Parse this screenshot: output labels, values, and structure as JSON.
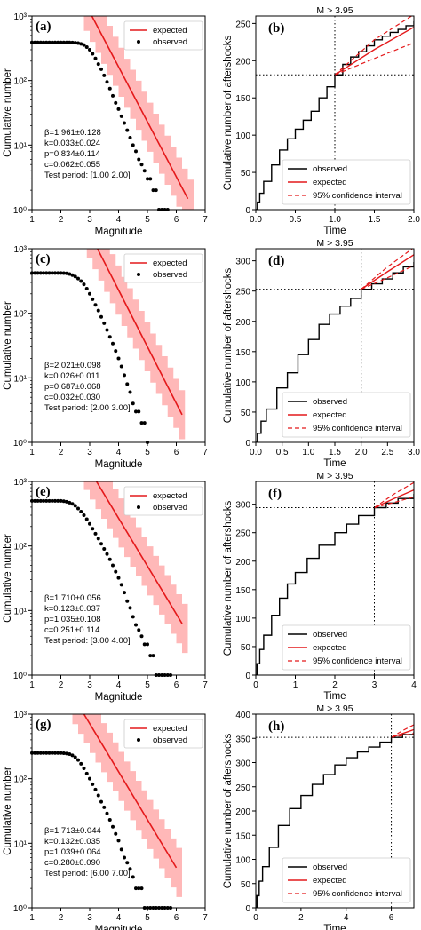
{
  "chart_data": [
    {
      "type": "scatter",
      "panel": "(a)",
      "x": [
        1.0,
        1.1,
        1.2,
        1.3,
        1.4,
        1.5,
        1.6,
        1.7,
        1.8,
        1.9,
        2.0,
        2.1,
        2.2,
        2.3,
        2.4,
        2.5,
        2.6,
        2.7,
        2.8,
        2.9,
        3.0,
        3.1,
        3.2,
        3.3,
        3.4,
        3.5,
        3.6,
        3.7,
        3.8,
        3.9,
        4.0,
        4.1,
        4.2,
        4.3,
        4.4,
        4.5,
        4.6,
        4.7,
        4.8,
        4.9,
        5.0,
        5.1,
        5.2,
        5.3,
        5.4,
        5.5,
        5.6,
        5.7
      ],
      "observed": [
        390,
        390,
        390,
        390,
        390,
        390,
        390,
        390,
        390,
        390,
        390,
        390,
        390,
        390,
        388,
        385,
        380,
        370,
        355,
        330,
        300,
        260,
        220,
        180,
        150,
        120,
        95,
        75,
        58,
        45,
        36,
        28,
        22,
        17,
        13,
        10,
        8,
        6,
        5,
        4,
        3,
        3,
        2,
        2,
        1,
        1,
        1,
        1
      ],
      "expected_line": {
        "m0": 3.95,
        "n0": 180,
        "beta": 1.961,
        "from": 2.8,
        "to": 6.4
      },
      "band_factor": 2.4,
      "xlabel": "Magnitude",
      "ylabel": "Cumulative number",
      "xlim": [
        1,
        7
      ],
      "ylog": true,
      "ylim_exp": [
        0,
        3
      ],
      "xticks": [
        "1",
        "2",
        "3",
        "4",
        "5",
        "6",
        "7"
      ],
      "yticks": [
        "10⁰",
        "10¹",
        "10²",
        "10³"
      ],
      "legend": [
        "expected",
        "observed"
      ],
      "params": [
        "β=1.961±0.128",
        "k=0.033±0.024",
        "p=0.834±0.114",
        "c=0.062±0.055",
        "Test period: [1.00 2.00]"
      ]
    },
    {
      "type": "line",
      "panel": "(b)",
      "title": "M > 3.95",
      "xlabel": "Time",
      "ylabel": "Cumulative number of aftershocks",
      "xlim": [
        0,
        2
      ],
      "ylim": [
        0,
        260
      ],
      "xticks": [
        "0.0",
        "0.5",
        "1.0",
        "1.5",
        "2.0"
      ],
      "xtick_vals": [
        0,
        0.5,
        1.0,
        1.5,
        2.0
      ],
      "yticks": [
        "0",
        "50",
        "100",
        "150",
        "200",
        "250"
      ],
      "ytick_vals": [
        0,
        50,
        100,
        150,
        200,
        250
      ],
      "split": 1.0,
      "n_at_split": 181,
      "observed": [
        [
          0,
          0
        ],
        [
          0.02,
          10
        ],
        [
          0.05,
          22
        ],
        [
          0.1,
          38
        ],
        [
          0.2,
          60
        ],
        [
          0.3,
          80
        ],
        [
          0.4,
          95
        ],
        [
          0.5,
          108
        ],
        [
          0.6,
          120
        ],
        [
          0.7,
          132
        ],
        [
          0.8,
          150
        ],
        [
          0.9,
          165
        ],
        [
          1.0,
          181
        ],
        [
          1.1,
          195
        ],
        [
          1.2,
          205
        ],
        [
          1.3,
          212
        ],
        [
          1.4,
          220
        ],
        [
          1.5,
          228
        ],
        [
          1.6,
          233
        ],
        [
          1.7,
          238
        ],
        [
          1.8,
          242
        ],
        [
          1.9,
          247
        ],
        [
          2.0,
          253
        ]
      ],
      "expected": [
        [
          1.0,
          181
        ],
        [
          1.5,
          215
        ],
        [
          2.0,
          245
        ]
      ],
      "ci_upper": [
        [
          1.0,
          181
        ],
        [
          1.5,
          228
        ],
        [
          2.0,
          262
        ]
      ],
      "ci_lower": [
        [
          1.0,
          181
        ],
        [
          1.5,
          203
        ],
        [
          2.0,
          224
        ]
      ],
      "legend": [
        "observed",
        "expected",
        "95% confidence interval"
      ]
    },
    {
      "type": "scatter",
      "panel": "(c)",
      "x": [
        1.0,
        1.1,
        1.2,
        1.3,
        1.4,
        1.5,
        1.6,
        1.7,
        1.8,
        1.9,
        2.0,
        2.1,
        2.2,
        2.3,
        2.4,
        2.5,
        2.6,
        2.7,
        2.8,
        2.9,
        3.0,
        3.1,
        3.2,
        3.3,
        3.4,
        3.5,
        3.6,
        3.7,
        3.8,
        3.9,
        4.0,
        4.1,
        4.2,
        4.3,
        4.4,
        4.5,
        4.6,
        4.7,
        4.8,
        4.9,
        5.0
      ],
      "observed": [
        420,
        420,
        420,
        420,
        420,
        420,
        420,
        420,
        420,
        420,
        420,
        418,
        415,
        405,
        390,
        370,
        345,
        315,
        280,
        240,
        200,
        165,
        135,
        110,
        88,
        70,
        55,
        43,
        34,
        26,
        20,
        15,
        11,
        8,
        6,
        4,
        3,
        3,
        2,
        2,
        1
      ],
      "expected_line": {
        "m0": 3.95,
        "n0": 253,
        "beta": 2.021,
        "from": 2.9,
        "to": 6.2
      },
      "band_factor": 2.4,
      "xlabel": "Magnitude",
      "ylabel": "Cumulative number",
      "xlim": [
        1,
        7
      ],
      "ylog": true,
      "ylim_exp": [
        0,
        3
      ],
      "xticks": [
        "1",
        "2",
        "3",
        "4",
        "5",
        "6",
        "7"
      ],
      "yticks": [
        "10⁰",
        "10¹",
        "10²",
        "10³"
      ],
      "legend": [
        "expected",
        "observed"
      ],
      "params": [
        "β=2.021±0.098",
        "k=0.026±0.011",
        "p=0.687±0.068",
        "c=0.032±0.030",
        "Test period: [2.00 3.00]"
      ]
    },
    {
      "type": "line",
      "panel": "(d)",
      "title": "M > 3.95",
      "xlabel": "Time",
      "ylabel": "Cumulative number of aftershocks",
      "xlim": [
        0,
        3
      ],
      "ylim": [
        0,
        320
      ],
      "xticks": [
        "0.0",
        "0.5",
        "1.0",
        "1.5",
        "2.0",
        "2.5",
        "3.0"
      ],
      "xtick_vals": [
        0,
        0.5,
        1.0,
        1.5,
        2.0,
        2.5,
        3.0
      ],
      "yticks": [
        "0",
        "50",
        "100",
        "150",
        "200",
        "250",
        "300"
      ],
      "ytick_vals": [
        0,
        50,
        100,
        150,
        200,
        250,
        300
      ],
      "split": 2.0,
      "n_at_split": 253,
      "observed": [
        [
          0,
          0
        ],
        [
          0.03,
          15
        ],
        [
          0.1,
          35
        ],
        [
          0.2,
          55
        ],
        [
          0.4,
          90
        ],
        [
          0.6,
          115
        ],
        [
          0.8,
          145
        ],
        [
          1.0,
          170
        ],
        [
          1.2,
          195
        ],
        [
          1.4,
          212
        ],
        [
          1.6,
          225
        ],
        [
          1.8,
          238
        ],
        [
          2.0,
          253
        ],
        [
          2.2,
          262
        ],
        [
          2.4,
          270
        ],
        [
          2.6,
          280
        ],
        [
          2.8,
          290
        ],
        [
          3.0,
          298
        ]
      ],
      "expected": [
        [
          2.0,
          253
        ],
        [
          2.5,
          282
        ],
        [
          3.0,
          310
        ]
      ],
      "ci_upper": [
        [
          2.0,
          253
        ],
        [
          2.5,
          290
        ],
        [
          3.0,
          322
        ]
      ],
      "ci_lower": [
        [
          2.0,
          253
        ],
        [
          2.5,
          272
        ],
        [
          3.0,
          292
        ]
      ],
      "legend": [
        "observed",
        "expected",
        "95% confidence interval"
      ]
    },
    {
      "type": "scatter",
      "panel": "(e)",
      "x": [
        1.0,
        1.1,
        1.2,
        1.3,
        1.4,
        1.5,
        1.6,
        1.7,
        1.8,
        1.9,
        2.0,
        2.1,
        2.2,
        2.3,
        2.4,
        2.5,
        2.6,
        2.7,
        2.8,
        2.9,
        3.0,
        3.1,
        3.2,
        3.3,
        3.4,
        3.5,
        3.6,
        3.7,
        3.8,
        3.9,
        4.0,
        4.1,
        4.2,
        4.3,
        4.4,
        4.5,
        4.6,
        4.7,
        4.8,
        4.9,
        5.0,
        5.1,
        5.2,
        5.3,
        5.4,
        5.5,
        5.6,
        5.7,
        5.8
      ],
      "observed": [
        500,
        500,
        500,
        500,
        500,
        500,
        500,
        500,
        500,
        500,
        500,
        495,
        485,
        470,
        450,
        420,
        380,
        340,
        300,
        260,
        220,
        185,
        155,
        130,
        108,
        90,
        75,
        62,
        50,
        40,
        32,
        25,
        19,
        14,
        11,
        8,
        6,
        5,
        4,
        3,
        3,
        2,
        2,
        1,
        1,
        1,
        1,
        1,
        1
      ],
      "expected_line": {
        "m0": 3.95,
        "n0": 294,
        "beta": 1.71,
        "from": 2.0,
        "to": 6.2
      },
      "band_factor": 2.4,
      "xlabel": "Magnitude",
      "ylabel": "Cumulative number",
      "xlim": [
        1,
        7
      ],
      "ylog": true,
      "ylim_exp": [
        0,
        3
      ],
      "xticks": [
        "1",
        "2",
        "3",
        "4",
        "5",
        "6",
        "7"
      ],
      "yticks": [
        "10⁰",
        "10¹",
        "10²",
        "10³"
      ],
      "legend": [
        "expected",
        "observed"
      ],
      "params": [
        "β=1.710±0.056",
        "k=0.123±0.037",
        "p=1.035±0.108",
        "c=0.251±0.114",
        "Test period: [3.00 4.00]"
      ]
    },
    {
      "type": "line",
      "panel": "(f)",
      "title": "M > 3.95",
      "xlabel": "Time",
      "ylabel": "Cumulative number of aftershocks",
      "xlim": [
        0,
        4
      ],
      "ylim": [
        0,
        340
      ],
      "xticks": [
        "0",
        "1",
        "2",
        "3",
        "4"
      ],
      "xtick_vals": [
        0,
        1,
        2,
        3,
        4
      ],
      "yticks": [
        "0",
        "50",
        "100",
        "150",
        "200",
        "250",
        "300"
      ],
      "ytick_vals": [
        0,
        50,
        100,
        150,
        200,
        250,
        300
      ],
      "split": 3.0,
      "n_at_split": 294,
      "observed": [
        [
          0,
          0
        ],
        [
          0.03,
          20
        ],
        [
          0.1,
          45
        ],
        [
          0.2,
          70
        ],
        [
          0.4,
          105
        ],
        [
          0.6,
          135
        ],
        [
          0.8,
          160
        ],
        [
          1.0,
          180
        ],
        [
          1.3,
          205
        ],
        [
          1.6,
          228
        ],
        [
          2.0,
          250
        ],
        [
          2.3,
          265
        ],
        [
          2.6,
          280
        ],
        [
          3.0,
          294
        ],
        [
          3.3,
          302
        ],
        [
          3.6,
          310
        ],
        [
          4.0,
          318
        ]
      ],
      "expected": [
        [
          3.0,
          294
        ],
        [
          3.5,
          310
        ],
        [
          4.0,
          325
        ]
      ],
      "ci_upper": [
        [
          3.0,
          294
        ],
        [
          3.5,
          318
        ],
        [
          4.0,
          338
        ]
      ],
      "ci_lower": [
        [
          3.0,
          294
        ],
        [
          3.5,
          303
        ],
        [
          4.0,
          313
        ]
      ],
      "legend": [
        "observed",
        "expected",
        "95% confidence interval"
      ]
    },
    {
      "type": "scatter",
      "panel": "(g)",
      "x": [
        1.0,
        1.1,
        1.2,
        1.3,
        1.4,
        1.5,
        1.6,
        1.7,
        1.8,
        1.9,
        2.0,
        2.1,
        2.2,
        2.3,
        2.4,
        2.5,
        2.6,
        2.7,
        2.8,
        2.9,
        3.0,
        3.1,
        3.2,
        3.3,
        3.4,
        3.5,
        3.6,
        3.7,
        3.8,
        3.9,
        4.0,
        4.1,
        4.2,
        4.3,
        4.4,
        4.5,
        4.6,
        4.7,
        4.8,
        4.9,
        5.0,
        5.1,
        5.2,
        5.3,
        5.4,
        5.5,
        5.6,
        5.7,
        5.8
      ],
      "observed": [
        250,
        250,
        250,
        250,
        250,
        250,
        250,
        250,
        250,
        250,
        250,
        248,
        245,
        240,
        230,
        215,
        195,
        170,
        145,
        120,
        100,
        82,
        68,
        55,
        44,
        36,
        29,
        23,
        18,
        14,
        11,
        8,
        6,
        5,
        4,
        3,
        2,
        2,
        2,
        1,
        1,
        1,
        1,
        1,
        1,
        1,
        1,
        1,
        1
      ],
      "expected_line": {
        "m0": 3.95,
        "n0": 140,
        "beta": 1.713,
        "from": 1.6,
        "to": 6.0
      },
      "band_factor": 2.4,
      "xlabel": "Magnitude",
      "ylabel": "Cumulative number",
      "xlim": [
        1,
        7
      ],
      "ylog": true,
      "ylim_exp": [
        0,
        3
      ],
      "xticks": [
        "1",
        "2",
        "3",
        "4",
        "5",
        "6",
        "7"
      ],
      "yticks": [
        "10⁰",
        "10¹",
        "10²",
        "10³"
      ],
      "legend": [
        "expected",
        "observed"
      ],
      "params": [
        "β=1.713±0.044",
        "k=0.132±0.035",
        "p=1.039±0.064",
        "c=0.280±0.090",
        "Test period: [6.00 7.00]"
      ]
    },
    {
      "type": "line",
      "panel": "(h)",
      "title": "M > 3.95",
      "xlabel": "Time",
      "ylabel": "Cumulative number of aftershocks",
      "xlim": [
        0,
        7
      ],
      "ylim": [
        0,
        400
      ],
      "xticks": [
        "0",
        "2",
        "4",
        "6"
      ],
      "xtick_vals": [
        0,
        2,
        4,
        6
      ],
      "yticks": [
        "0",
        "50",
        "100",
        "150",
        "200",
        "250",
        "300",
        "350",
        "400"
      ],
      "ytick_vals": [
        0,
        50,
        100,
        150,
        200,
        250,
        300,
        350,
        400
      ],
      "split": 6.0,
      "n_at_split": 352,
      "observed": [
        [
          0,
          0
        ],
        [
          0.05,
          25
        ],
        [
          0.15,
          55
        ],
        [
          0.3,
          85
        ],
        [
          0.6,
          125
        ],
        [
          1.0,
          170
        ],
        [
          1.5,
          205
        ],
        [
          2.0,
          232
        ],
        [
          2.5,
          255
        ],
        [
          3.0,
          275
        ],
        [
          3.5,
          295
        ],
        [
          4.0,
          310
        ],
        [
          4.5,
          322
        ],
        [
          5.0,
          332
        ],
        [
          5.5,
          342
        ],
        [
          6.0,
          352
        ],
        [
          6.5,
          358
        ],
        [
          7.0,
          364
        ]
      ],
      "expected": [
        [
          6.0,
          352
        ],
        [
          6.5,
          360
        ],
        [
          7.0,
          368
        ]
      ],
      "ci_upper": [
        [
          6.0,
          352
        ],
        [
          6.5,
          366
        ],
        [
          7.0,
          378
        ]
      ],
      "ci_lower": [
        [
          6.0,
          352
        ],
        [
          6.5,
          356
        ],
        [
          7.0,
          360
        ]
      ],
      "legend": [
        "observed",
        "expected",
        "95% confidence interval"
      ]
    }
  ]
}
